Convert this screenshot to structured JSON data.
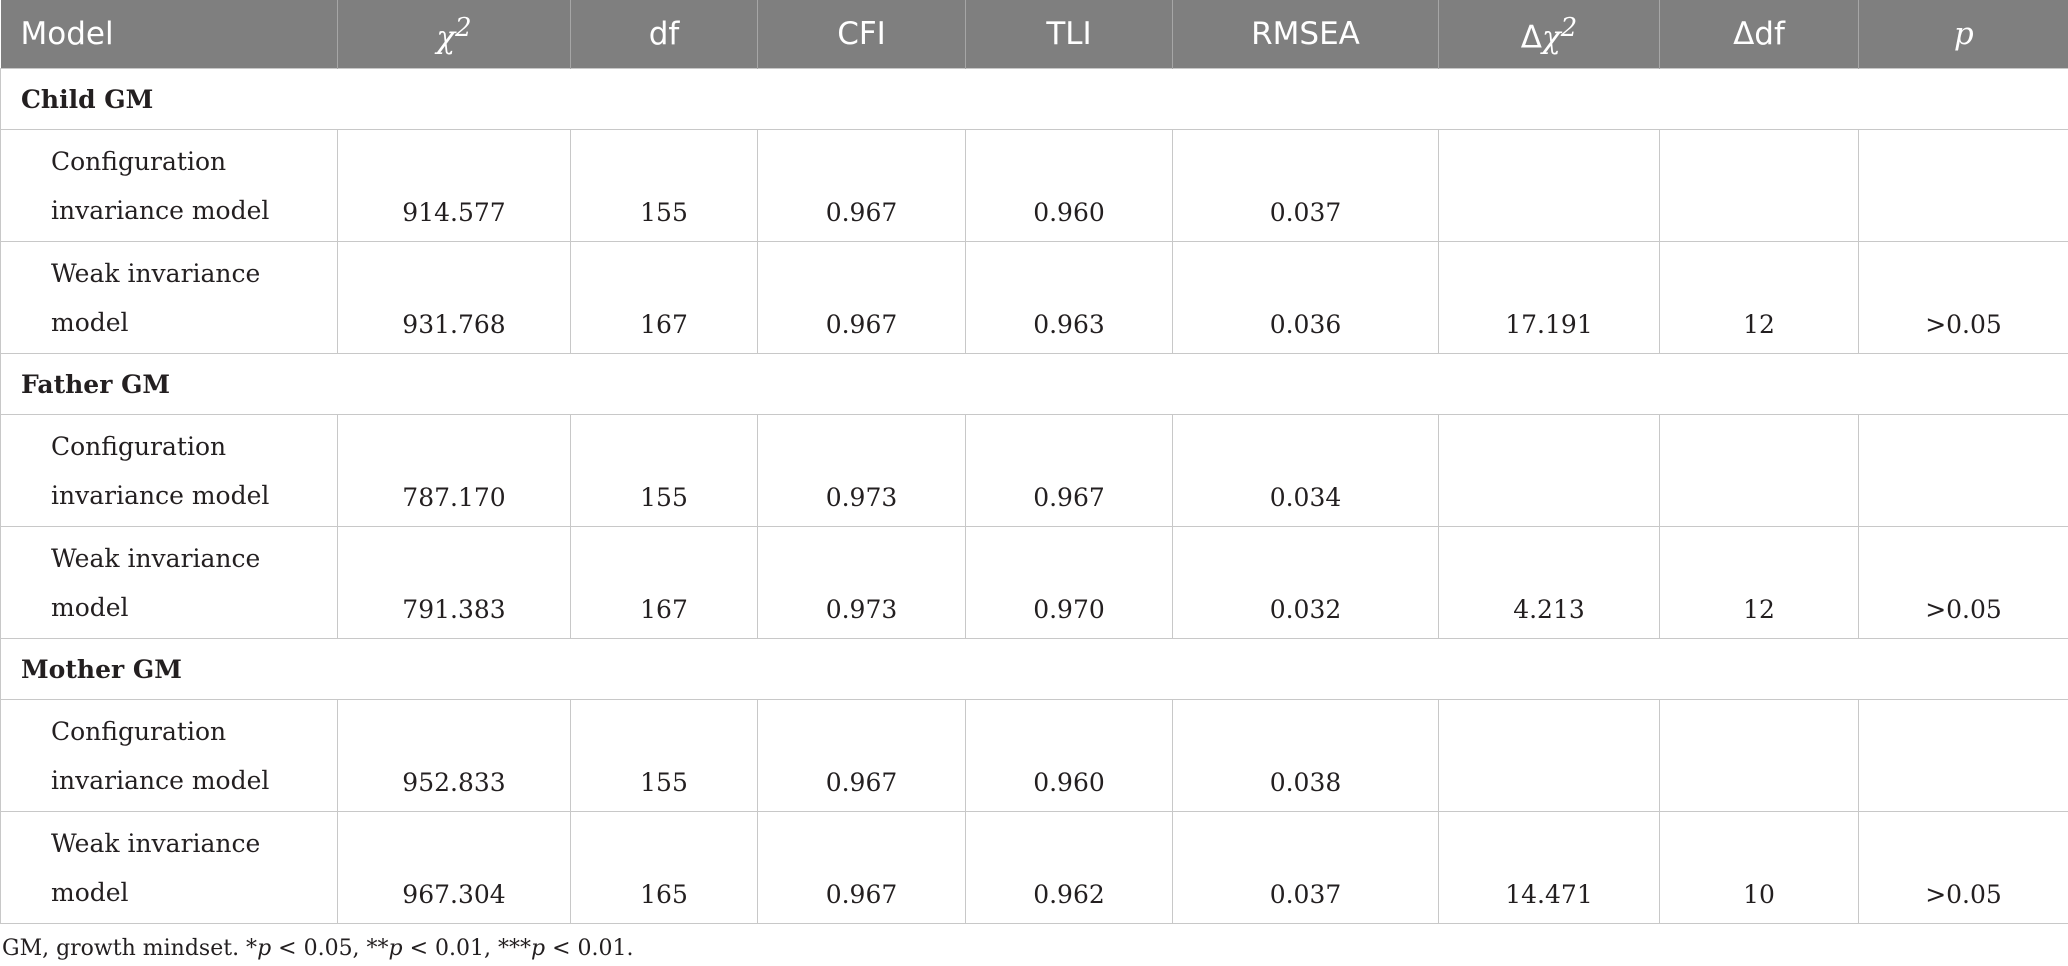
{
  "header": {
    "model": "Model",
    "chi2_symbol": "χ",
    "chi2_sup": "2",
    "df": "df",
    "cfi": "CFI",
    "tli": "TLI",
    "rmsea": "RMSEA",
    "dchi2_prefix": "Δ",
    "dchi2_symbol": "χ",
    "dchi2_sup": "2",
    "ddf": "Δdf",
    "p": "p"
  },
  "groups": [
    {
      "label": "Child GM",
      "rows": [
        {
          "line1": "Configuration",
          "line2": "invariance model",
          "chi2": "914.577",
          "df": "155",
          "cfi": "0.967",
          "tli": "0.960",
          "rmsea": "0.037",
          "dchi2": "",
          "ddf": "",
          "p": ""
        },
        {
          "line1": "Weak invariance",
          "line2": "model",
          "chi2": "931.768",
          "df": "167",
          "cfi": "0.967",
          "tli": "0.963",
          "rmsea": "0.036",
          "dchi2": "17.191",
          "ddf": "12",
          "p": ">0.05"
        }
      ]
    },
    {
      "label": "Father GM",
      "rows": [
        {
          "line1": "Configuration",
          "line2": "invariance model",
          "chi2": "787.170",
          "df": "155",
          "cfi": "0.973",
          "tli": "0.967",
          "rmsea": "0.034",
          "dchi2": "",
          "ddf": "",
          "p": ""
        },
        {
          "line1": "Weak invariance",
          "line2": "model",
          "chi2": "791.383",
          "df": "167",
          "cfi": "0.973",
          "tli": "0.970",
          "rmsea": "0.032",
          "dchi2": "4.213",
          "ddf": "12",
          "p": ">0.05"
        }
      ]
    },
    {
      "label": "Mother GM",
      "rows": [
        {
          "line1": "Configuration",
          "line2": "invariance model",
          "chi2": "952.833",
          "df": "155",
          "cfi": "0.967",
          "tli": "0.960",
          "rmsea": "0.038",
          "dchi2": "",
          "ddf": "",
          "p": ""
        },
        {
          "line1": "Weak invariance",
          "line2": "model",
          "chi2": "967.304",
          "df": "165",
          "cfi": "0.967",
          "tli": "0.962",
          "rmsea": "0.037",
          "dchi2": "14.471",
          "ddf": "10",
          "p": ">0.05"
        }
      ]
    }
  ],
  "footnote": {
    "abbr": "GM, growth mindset. *",
    "p1": "p",
    "t1": " < 0.05, **",
    "p2": "p",
    "t2": " < 0.01, ***",
    "p3": "p",
    "t3": " < 0.01."
  }
}
